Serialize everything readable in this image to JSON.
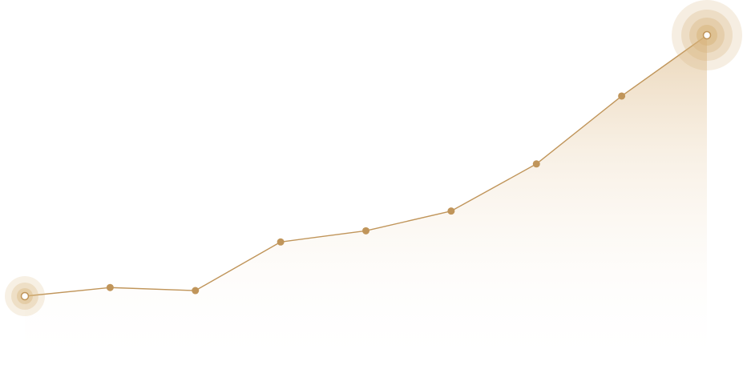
{
  "chart_data": {
    "type": "area",
    "title": "",
    "xlabel": "",
    "ylabel": "",
    "grid": false,
    "legend": "none",
    "x": [
      1,
      2,
      3,
      4,
      5,
      6,
      7,
      8,
      9
    ],
    "series": [
      {
        "values": [
          10,
          18.5,
          15.5,
          63.5,
          74.5,
          94,
          140.5,
          207.5,
          267.5
        ],
        "color": "#c0955a",
        "highlight_points": [
          0,
          8
        ]
      }
    ],
    "xlim": [
      1,
      9
    ],
    "ylim": [
      0,
      280
    ]
  }
}
